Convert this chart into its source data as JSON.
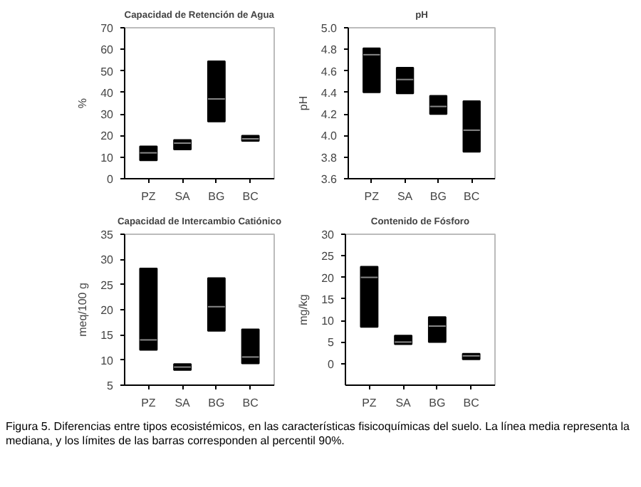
{
  "chart_data": [
    {
      "type": "box",
      "title": "Capacidad de Retención de Agua",
      "ylabel": "%",
      "categories": [
        "PZ",
        "SA",
        "BG",
        "BC"
      ],
      "boxes": [
        {
          "low": 8.5,
          "q1": 8.5,
          "median": 12,
          "q3": 15,
          "high": 15
        },
        {
          "low": 13.5,
          "q1": 13.5,
          "median": 16.5,
          "q3": 18,
          "high": 18
        },
        {
          "low": 26.5,
          "q1": 26.5,
          "median": 37,
          "q3": 54.5,
          "high": 54.5
        },
        {
          "low": 17.5,
          "q1": 17.5,
          "median": 18.5,
          "q3": 20,
          "high": 20
        }
      ],
      "color": "#000000",
      "ylim": [
        0,
        70
      ],
      "yticks": [
        0,
        10,
        20,
        30,
        40,
        50,
        60,
        70
      ],
      "annotations": [
        "Figura 5. Diferencias entre tipos ecosistémicos, en las características fisicoquímicas del suelo. La línea media representa la mediana, y los límites de las barras corresponden al percentil 90%."
      ]
    },
    {
      "type": "box",
      "title": "pH",
      "ylabel": "pH",
      "categories": [
        "PZ",
        "SA",
        "BG",
        "BC"
      ],
      "boxes": [
        {
          "low": 4.4,
          "q1": 4.4,
          "median": 4.75,
          "q3": 4.81,
          "high": 4.81
        },
        {
          "low": 4.39,
          "q1": 4.39,
          "median": 4.52,
          "q3": 4.63,
          "high": 4.63
        },
        {
          "low": 4.2,
          "q1": 4.2,
          "median": 4.27,
          "q3": 4.37,
          "high": 4.37
        },
        {
          "low": 3.85,
          "q1": 3.85,
          "median": 4.05,
          "q3": 4.32,
          "high": 4.32
        }
      ],
      "color": "#000000",
      "ylim": [
        3.6,
        5.0
      ],
      "yticks": [
        {
          "value": 3.6,
          "label": "3.6"
        },
        {
          "value": 3.8,
          "label": "3.8"
        },
        {
          "value": 4.0,
          "label": "4.0"
        },
        {
          "value": 4.2,
          "label": "4.2"
        },
        {
          "value": 4.4,
          "label": "4.4"
        },
        {
          "value": 4.6,
          "label": "4.6"
        },
        {
          "value": 4.8,
          "label": "4.8"
        },
        {
          "value": 5.0,
          "label": "5.0"
        }
      ]
    },
    {
      "type": "box",
      "title": "Capacidad de Intercambio Catiónico",
      "ylabel": "meq/100 g",
      "categories": [
        "PZ",
        "SA",
        "BG",
        "BC"
      ],
      "boxes": [
        {
          "low": 12,
          "q1": 12,
          "median": 14,
          "q3": 28.2,
          "high": 28.2
        },
        {
          "low": 8,
          "q1": 8,
          "median": 8.6,
          "q3": 9.2,
          "high": 9.2
        },
        {
          "low": 15.8,
          "q1": 15.8,
          "median": 20.6,
          "q3": 26.3,
          "high": 26.3
        },
        {
          "low": 9.3,
          "q1": 9.3,
          "median": 10.6,
          "q3": 16.1,
          "high": 16.1
        }
      ],
      "color": "#000000",
      "ylim": [
        5,
        35
      ],
      "yticks": [
        5,
        10,
        15,
        20,
        25,
        30,
        35
      ]
    },
    {
      "type": "box",
      "title": "Contenido de Fósforo",
      "ylabel": "mg/kg",
      "categories": [
        "PZ",
        "SA",
        "BG",
        "BC"
      ],
      "boxes": [
        {
          "low": 8.5,
          "q1": 8.5,
          "median": 20,
          "q3": 22.5,
          "high": 22.5
        },
        {
          "low": 4.5,
          "q1": 4.5,
          "median": 5,
          "q3": 6.5,
          "high": 6.5
        },
        {
          "low": 5,
          "q1": 5,
          "median": 8.7,
          "q3": 10.8,
          "high": 10.8
        },
        {
          "low": 1,
          "q1": 1,
          "median": 1.8,
          "q3": 2.3,
          "high": 2.3
        }
      ],
      "color": "#000000",
      "ylim": [
        -5,
        30
      ],
      "yticks": [
        0,
        5,
        10,
        15,
        20,
        25,
        30
      ]
    }
  ]
}
